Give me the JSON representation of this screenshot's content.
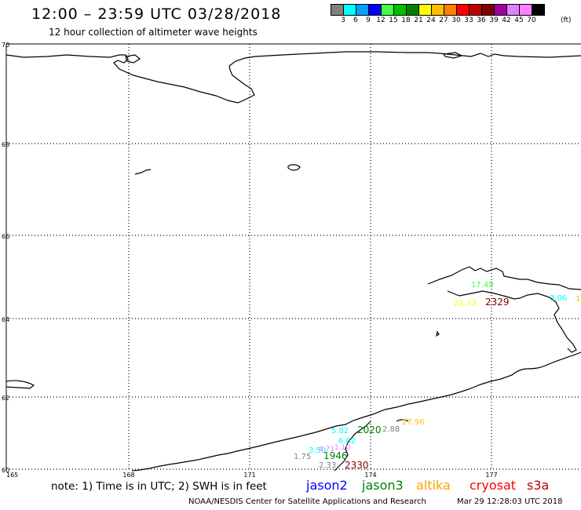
{
  "header": {
    "title": "12:00 – 23:59 UTC 03/28/2018",
    "subtitle": "12 hour collection of altimeter wave heights"
  },
  "legend": {
    "unit": "(ft)",
    "bins": [
      {
        "label": "3",
        "color": "#808080"
      },
      {
        "label": "6",
        "color": "#00ffff"
      },
      {
        "label": "9",
        "color": "#00a0ff"
      },
      {
        "label": "12",
        "color": "#0000ff"
      },
      {
        "label": "15",
        "color": "#40ff40"
      },
      {
        "label": "18",
        "color": "#00c000"
      },
      {
        "label": "21",
        "color": "#008000"
      },
      {
        "label": "24",
        "color": "#ffff00"
      },
      {
        "label": "27",
        "color": "#ffc000"
      },
      {
        "label": "30",
        "color": "#ff8000"
      },
      {
        "label": "33",
        "color": "#ff0000"
      },
      {
        "label": "36",
        "color": "#c00000"
      },
      {
        "label": "39",
        "color": "#800000"
      },
      {
        "label": "42",
        "color": "#a000a0"
      },
      {
        "label": "45",
        "color": "#e080ff"
      },
      {
        "label": "70",
        "color": "#ff80ff"
      },
      {
        "label": "",
        "color": "#000000"
      }
    ]
  },
  "map": {
    "lat_labels": [
      "70",
      "68",
      "66",
      "64",
      "62",
      "60"
    ],
    "lon_labels": [
      "165",
      "168",
      "171",
      "174",
      "177"
    ],
    "observations": [
      {
        "text": "17.49",
        "color": "#40ff40"
      },
      {
        "text": "22.13",
        "color": "#ffff00"
      },
      {
        "text": "2329",
        "color": "#800000"
      },
      {
        "text": "3.06",
        "color": "#00ffff"
      },
      {
        "text": "1",
        "color": "#ffc000"
      },
      {
        "text": "27.96",
        "color": "#ffc000"
      },
      {
        "text": "5.82",
        "color": "#00ffff"
      },
      {
        "text": "2020",
        "color": "#008000"
      },
      {
        "text": "2.88",
        "color": "#808080"
      },
      {
        "text": "6.62",
        "color": "#00ffff"
      },
      {
        "text": "1.10",
        "color": "#e080ff"
      },
      {
        "text": "3.50",
        "color": "#00ffff"
      },
      {
        "text": "4.71",
        "color": "#e080ff"
      },
      {
        "text": "1.75",
        "color": "#808080"
      },
      {
        "text": "1946",
        "color": "#008000"
      },
      {
        "text": "2.33",
        "color": "#808080"
      },
      {
        "text": "2330",
        "color": "#800000"
      }
    ]
  },
  "footer": {
    "note": "note: 1) Time is in UTC; 2) SWH is in feet",
    "satellites": [
      {
        "name": "jason2",
        "color": "#0000ff"
      },
      {
        "name": "jason3",
        "color": "#008000"
      },
      {
        "name": "altika",
        "color": "#ffa000"
      },
      {
        "name": "cryosat",
        "color": "#ff0000"
      },
      {
        "name": "s3a",
        "color": "#c00000"
      }
    ],
    "credit": "NOAA/NESDIS Center for Satellite Applications and Research",
    "timestamp": "Mar 29 12:28:03 UTC 2018"
  }
}
